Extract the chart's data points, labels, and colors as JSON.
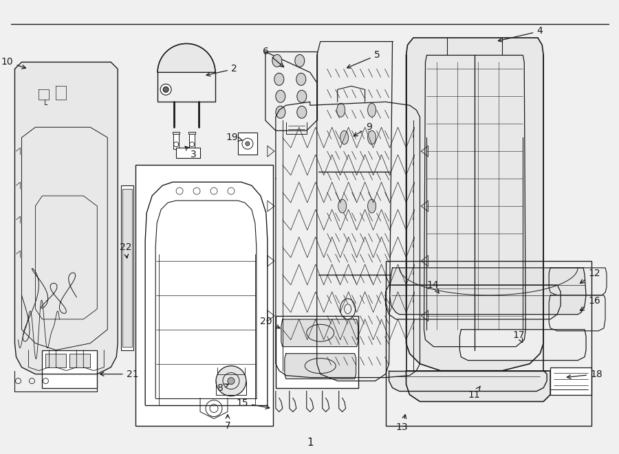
{
  "background_color": "#f0f0f0",
  "inner_bg": "#f0f0f0",
  "border_color": "#1a1a1a",
  "line_color": "#1a1a1a",
  "text_color": "#1a1a1a",
  "fig_width": 9.0,
  "fig_height": 6.61,
  "dpi": 100
}
